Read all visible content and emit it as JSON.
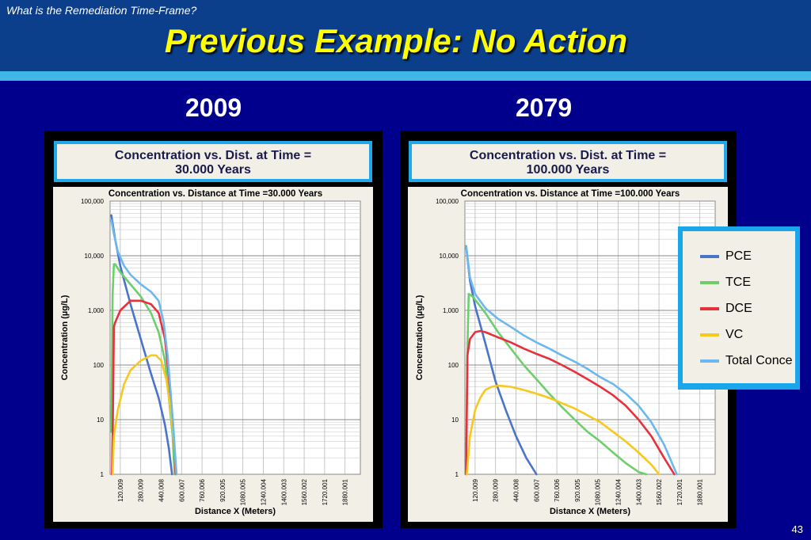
{
  "slide": {
    "kicker": "What is the Remediation Time-Frame?",
    "title": "Previous Example: No Action",
    "page_number": "43",
    "years": [
      "2009",
      "2079"
    ]
  },
  "captions": [
    {
      "line1": "Concentration vs. Dist. at Time  =",
      "line2": "30.000 Years"
    },
    {
      "line1": "Concentration vs. Dist. at Time  =",
      "line2": "100.000 Years"
    }
  ],
  "legend": [
    {
      "label": "PCE",
      "color": "#4a74c9"
    },
    {
      "label": "TCE",
      "color": "#6ccf6c"
    },
    {
      "label": "DCE",
      "color": "#e8303c"
    },
    {
      "label": "VC",
      "color": "#f8c81c"
    },
    {
      "label": "Total Conce",
      "color": "#6cb8ee"
    }
  ],
  "chart_data": [
    {
      "type": "line",
      "title": "Concentration  vs. Distance at Time =30.000 Years",
      "xlabel": "Distance X (Meters)",
      "ylabel": "Concentration (µg/L)",
      "y_scale": "log",
      "ylim": [
        1,
        100000
      ],
      "xlim": [
        40,
        2000
      ],
      "y_ticks": [
        "1",
        "10",
        "100",
        "1,000",
        "10,000",
        "100,000"
      ],
      "x_ticks": [
        "120.009",
        "280.009",
        "440.008",
        "600.007",
        "760.006",
        "920.005",
        "1080.005",
        "1240.004",
        "1400.003",
        "1560.002",
        "1720.001",
        "1880.001"
      ],
      "series": [
        {
          "name": "PCE",
          "x": [
            50,
            80,
            120,
            200,
            280,
            360,
            420,
            470,
            500,
            525
          ],
          "y": [
            55000,
            20000,
            6500,
            1300,
            300,
            70,
            25,
            8,
            3,
            1
          ]
        },
        {
          "name": "TCE",
          "x": [
            50,
            55,
            60,
            70,
            80,
            120,
            200,
            280,
            360,
            420,
            470,
            500,
            530,
            545
          ],
          "y": [
            6,
            100,
            2000,
            7000,
            7000,
            5000,
            3000,
            1800,
            900,
            400,
            120,
            25,
            5,
            1
          ]
        },
        {
          "name": "DCE",
          "x": [
            55,
            62,
            70,
            80,
            120,
            200,
            280,
            360,
            420,
            470,
            500,
            530,
            555
          ],
          "y": [
            1,
            10,
            500,
            600,
            1000,
            1500,
            1500,
            1300,
            900,
            300,
            60,
            10,
            1
          ]
        },
        {
          "name": "VC",
          "x": [
            60,
            70,
            100,
            150,
            200,
            280,
            360,
            400,
            440,
            480,
            510,
            540,
            560
          ],
          "y": [
            1,
            5,
            15,
            45,
            80,
            120,
            150,
            150,
            120,
            55,
            18,
            4,
            1
          ]
        },
        {
          "name": "Total Conce",
          "x": [
            50,
            70,
            100,
            150,
            200,
            280,
            360,
            420,
            460,
            490,
            515,
            540,
            560
          ],
          "y": [
            45000,
            25000,
            12000,
            6500,
            4500,
            3000,
            2200,
            1500,
            600,
            150,
            30,
            5,
            1
          ]
        }
      ]
    },
    {
      "type": "line",
      "title": "Concentration  vs. Distance at Time =100.000 Years",
      "xlabel": "Distance X (Meters)",
      "ylabel": "Concentration (µg/L)",
      "y_scale": "log",
      "ylim": [
        1,
        100000
      ],
      "xlim": [
        40,
        2000
      ],
      "y_ticks": [
        "1",
        "10",
        "100",
        "1,000",
        "10,000",
        "100,000"
      ],
      "x_ticks": [
        "120.009",
        "280.009",
        "440.008",
        "600.007",
        "760.006",
        "920.005",
        "1080.005",
        "1240.004",
        "1400.003",
        "1560.002",
        "1720.001",
        "1880.001"
      ],
      "series": [
        {
          "name": "PCE",
          "x": [
            50,
            80,
            120,
            200,
            280,
            360,
            440,
            520,
            600
          ],
          "y": [
            15000,
            3500,
            1200,
            250,
            50,
            15,
            5,
            2,
            1
          ]
        },
        {
          "name": "TCE",
          "x": [
            50,
            60,
            70,
            100,
            200,
            300,
            400,
            500,
            600,
            700,
            800,
            900,
            1000,
            1100,
            1200,
            1300,
            1400,
            1460
          ],
          "y": [
            2,
            200,
            2000,
            1800,
            900,
            400,
            200,
            100,
            55,
            30,
            17,
            10,
            6,
            4,
            2.5,
            1.6,
            1.1,
            1
          ]
        },
        {
          "name": "DCE",
          "x": [
            50,
            60,
            80,
            120,
            160,
            200,
            300,
            400,
            500,
            600,
            700,
            800,
            900,
            1000,
            1100,
            1200,
            1300,
            1400,
            1500,
            1600,
            1680
          ],
          "y": [
            1,
            150,
            300,
            400,
            420,
            400,
            320,
            260,
            200,
            160,
            130,
            100,
            75,
            55,
            40,
            28,
            18,
            10,
            5,
            2,
            1
          ]
        },
        {
          "name": "VC",
          "x": [
            55,
            80,
            120,
            160,
            200,
            250,
            300,
            400,
            500,
            600,
            700,
            800,
            900,
            1000,
            1100,
            1200,
            1300,
            1400,
            1500,
            1560
          ],
          "y": [
            1,
            5,
            15,
            25,
            35,
            40,
            42,
            40,
            35,
            30,
            25,
            20,
            16,
            12,
            9,
            6,
            4,
            2.5,
            1.5,
            1
          ]
        },
        {
          "name": "Total Conce",
          "x": [
            50,
            80,
            120,
            200,
            300,
            400,
            500,
            600,
            700,
            800,
            900,
            1000,
            1100,
            1200,
            1300,
            1400,
            1500,
            1600,
            1700
          ],
          "y": [
            15000,
            4000,
            2000,
            1100,
            700,
            500,
            350,
            260,
            200,
            150,
            115,
            85,
            60,
            45,
            30,
            18,
            9,
            3.5,
            1
          ]
        }
      ]
    }
  ]
}
